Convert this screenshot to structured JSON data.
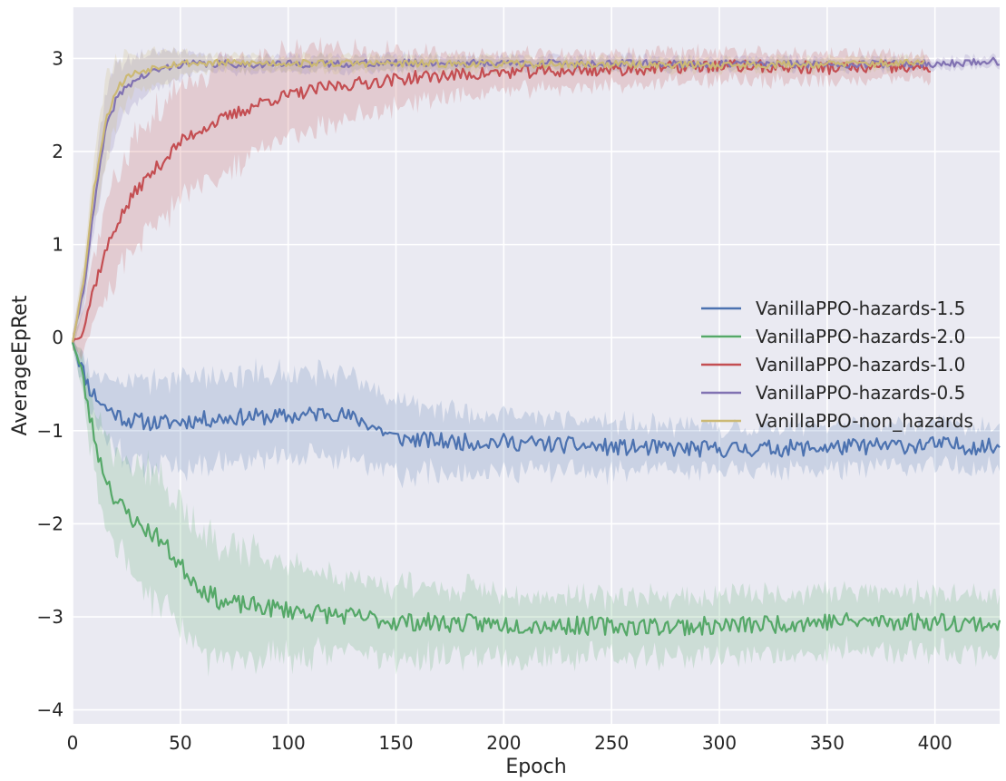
{
  "chart_data": {
    "type": "line",
    "title": "",
    "xlabel": "Epoch",
    "ylabel": "AverageEpRet",
    "xlim": [
      0,
      430
    ],
    "ylim": [
      -4.15,
      3.55
    ],
    "xticks": [
      0,
      50,
      100,
      150,
      200,
      250,
      300,
      350,
      400
    ],
    "yticks": [
      -4,
      -3,
      -2,
      -1,
      0,
      1,
      2,
      3
    ],
    "ytick_labels": [
      "−4",
      "−3",
      "−2",
      "−1",
      "0",
      "1",
      "2",
      "3"
    ],
    "grid": true,
    "background": "#eaeaf2",
    "legend_position": "center-right",
    "series": [
      {
        "name": "VanillaPPO-hazards-1.5",
        "color": "#4c72b0",
        "end_epoch": 430,
        "noise": 0.09,
        "seed": 11,
        "keyframes": [
          [
            0,
            -0.05
          ],
          [
            3,
            -0.25
          ],
          [
            8,
            -0.55
          ],
          [
            15,
            -0.75
          ],
          [
            25,
            -0.88
          ],
          [
            40,
            -0.92
          ],
          [
            60,
            -0.88
          ],
          [
            80,
            -0.85
          ],
          [
            100,
            -0.85
          ],
          [
            120,
            -0.8
          ],
          [
            135,
            -0.9
          ],
          [
            150,
            -1.08
          ],
          [
            175,
            -1.12
          ],
          [
            200,
            -1.12
          ],
          [
            250,
            -1.18
          ],
          [
            300,
            -1.2
          ],
          [
            350,
            -1.18
          ],
          [
            400,
            -1.15
          ],
          [
            430,
            -1.18
          ]
        ],
        "band": [
          [
            0,
            0.05
          ],
          [
            10,
            0.25
          ],
          [
            30,
            0.42
          ],
          [
            60,
            0.45
          ],
          [
            120,
            0.42
          ],
          [
            160,
            0.35
          ],
          [
            200,
            0.28
          ],
          [
            300,
            0.22
          ],
          [
            430,
            0.22
          ]
        ]
      },
      {
        "name": "VanillaPPO-hazards-2.0",
        "color": "#55a868",
        "end_epoch": 430,
        "noise": 0.1,
        "seed": 23,
        "keyframes": [
          [
            0,
            -0.05
          ],
          [
            4,
            -0.35
          ],
          [
            8,
            -0.85
          ],
          [
            13,
            -1.35
          ],
          [
            20,
            -1.75
          ],
          [
            30,
            -2.0
          ],
          [
            40,
            -2.15
          ],
          [
            50,
            -2.45
          ],
          [
            60,
            -2.7
          ],
          [
            70,
            -2.85
          ],
          [
            90,
            -2.9
          ],
          [
            110,
            -2.95
          ],
          [
            130,
            -3.0
          ],
          [
            150,
            -3.05
          ],
          [
            200,
            -3.08
          ],
          [
            250,
            -3.1
          ],
          [
            300,
            -3.1
          ],
          [
            350,
            -3.05
          ],
          [
            400,
            -3.05
          ],
          [
            430,
            -3.08
          ]
        ],
        "band": [
          [
            0,
            0.05
          ],
          [
            10,
            0.35
          ],
          [
            30,
            0.6
          ],
          [
            50,
            0.7
          ],
          [
            80,
            0.55
          ],
          [
            120,
            0.4
          ],
          [
            200,
            0.32
          ],
          [
            300,
            0.3
          ],
          [
            430,
            0.3
          ]
        ]
      },
      {
        "name": "VanillaPPO-hazards-1.0",
        "color": "#c44e52",
        "end_epoch": 398,
        "noise": 0.07,
        "seed": 37,
        "keyframes": [
          [
            0,
            -0.05
          ],
          [
            5,
            0.1
          ],
          [
            10,
            0.55
          ],
          [
            15,
            0.9
          ],
          [
            20,
            1.2
          ],
          [
            30,
            1.6
          ],
          [
            40,
            1.85
          ],
          [
            50,
            2.1
          ],
          [
            60,
            2.25
          ],
          [
            70,
            2.35
          ],
          [
            80,
            2.45
          ],
          [
            90,
            2.55
          ],
          [
            100,
            2.6
          ],
          [
            120,
            2.7
          ],
          [
            140,
            2.75
          ],
          [
            160,
            2.8
          ],
          [
            200,
            2.85
          ],
          [
            250,
            2.88
          ],
          [
            300,
            2.92
          ],
          [
            350,
            2.9
          ],
          [
            398,
            2.9
          ]
        ],
        "band": [
          [
            0,
            0.1
          ],
          [
            20,
            0.55
          ],
          [
            50,
            0.6
          ],
          [
            100,
            0.45
          ],
          [
            130,
            0.35
          ],
          [
            160,
            0.25
          ],
          [
            200,
            0.18
          ],
          [
            300,
            0.15
          ],
          [
            398,
            0.12
          ]
        ]
      },
      {
        "name": "VanillaPPO-hazards-0.5",
        "color": "#8172b2",
        "end_epoch": 430,
        "noise": 0.04,
        "seed": 41,
        "keyframes": [
          [
            0,
            -0.05
          ],
          [
            5,
            0.5
          ],
          [
            10,
            1.4
          ],
          [
            15,
            2.2
          ],
          [
            20,
            2.55
          ],
          [
            25,
            2.7
          ],
          [
            30,
            2.78
          ],
          [
            40,
            2.88
          ],
          [
            50,
            2.94
          ],
          [
            100,
            2.94
          ],
          [
            150,
            2.95
          ],
          [
            200,
            2.95
          ],
          [
            300,
            2.94
          ],
          [
            400,
            2.94
          ],
          [
            430,
            2.97
          ]
        ],
        "band": [
          [
            0,
            0.1
          ],
          [
            15,
            0.35
          ],
          [
            30,
            0.25
          ],
          [
            60,
            0.08
          ],
          [
            430,
            0.05
          ]
        ]
      },
      {
        "name": "VanillaPPO-non_hazards",
        "color": "#ccb974",
        "end_epoch": 395,
        "noise": 0.04,
        "seed": 53,
        "keyframes": [
          [
            0,
            -0.05
          ],
          [
            5,
            0.6
          ],
          [
            10,
            1.6
          ],
          [
            15,
            2.3
          ],
          [
            20,
            2.65
          ],
          [
            25,
            2.8
          ],
          [
            30,
            2.85
          ],
          [
            40,
            2.92
          ],
          [
            50,
            2.95
          ],
          [
            100,
            2.95
          ],
          [
            200,
            2.94
          ],
          [
            300,
            2.93
          ],
          [
            395,
            2.95
          ]
        ],
        "band": [
          [
            0,
            0.1
          ],
          [
            15,
            0.4
          ],
          [
            30,
            0.2
          ],
          [
            60,
            0.08
          ],
          [
            395,
            0.06
          ]
        ]
      }
    ]
  }
}
